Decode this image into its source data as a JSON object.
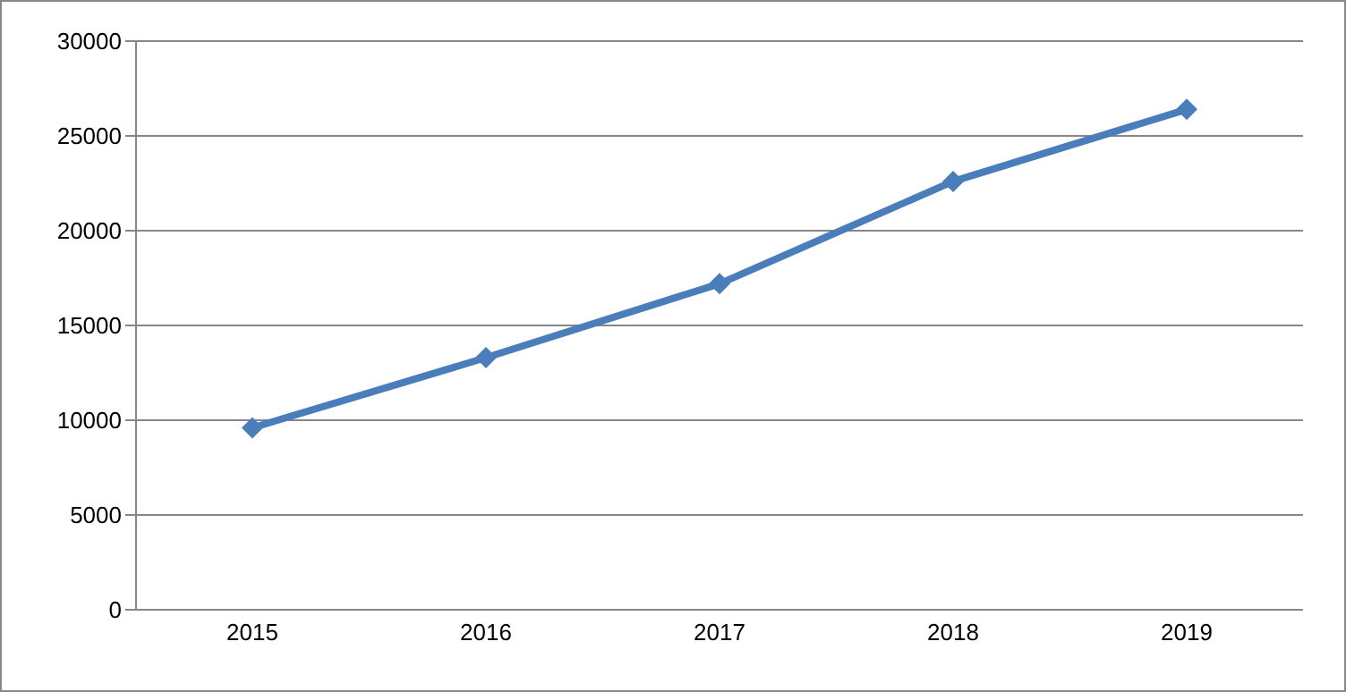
{
  "chart_data": {
    "type": "line",
    "categories": [
      "2015",
      "2016",
      "2017",
      "2018",
      "2019"
    ],
    "series": [
      {
        "color": "#4a7ebb",
        "values": [
          9600,
          13300,
          17200,
          22600,
          26400
        ]
      }
    ],
    "ylim": [
      0,
      30000
    ],
    "yticks": [
      0,
      5000,
      10000,
      15000,
      20000,
      25000,
      30000
    ],
    "grid": "y",
    "marker": "diamond",
    "line_style": "solid",
    "legend": false
  }
}
